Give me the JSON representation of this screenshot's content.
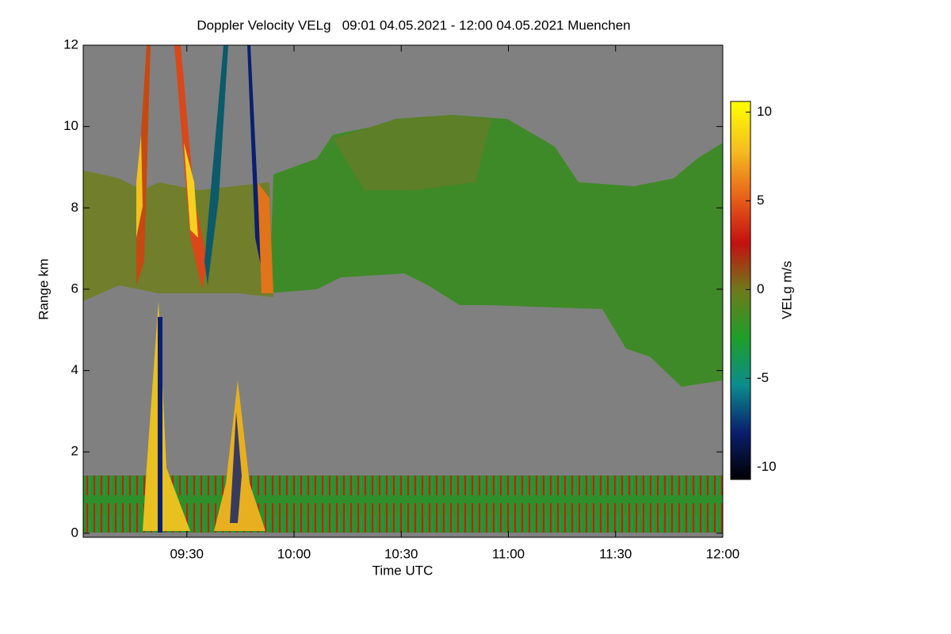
{
  "chart_data": {
    "type": "heatmap",
    "title": "Doppler Velocity VELg   09:01 04.05.2021 - 12:00 04.05.2021 Muenchen",
    "x_label": "Time UTC",
    "y_label": "Range km",
    "colorbar_label": "VELg m/s",
    "xlim": [
      541,
      720
    ],
    "xticks": [
      {
        "value": 570,
        "label": "09:30"
      },
      {
        "value": 600,
        "label": "10:00"
      },
      {
        "value": 630,
        "label": "10:30"
      },
      {
        "value": 660,
        "label": "11:00"
      },
      {
        "value": 690,
        "label": "11:30"
      },
      {
        "value": 720,
        "label": "12:00"
      }
    ],
    "ylim": [
      -0.1,
      12
    ],
    "yticks": [
      0,
      2,
      4,
      6,
      8,
      10,
      12
    ],
    "clim": [
      -10.7,
      10.6
    ],
    "cticks": [
      -10,
      -5,
      0,
      5,
      10
    ],
    "colormap": [
      "#000000",
      "#0a1f6e",
      "#0c8c8c",
      "#1f9e2a",
      "#6e7a1a",
      "#c41010",
      "#e8641a",
      "#f5c020",
      "#ffff00"
    ]
  }
}
